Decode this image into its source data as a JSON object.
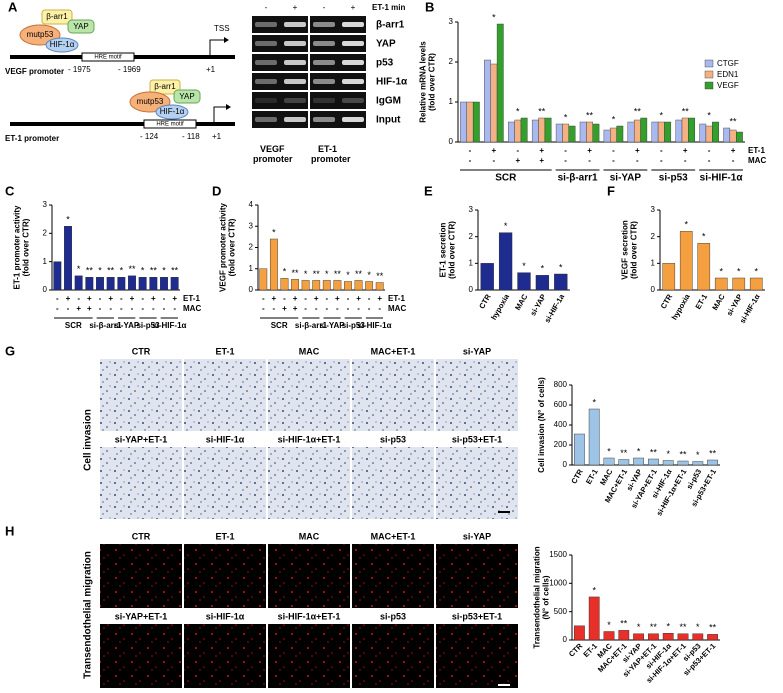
{
  "panel_labels": [
    "A",
    "B",
    "C",
    "D",
    "E",
    "F",
    "G",
    "H"
  ],
  "diagram": {
    "vegf": {
      "proteins": [
        "β-arr1",
        "YAP",
        "mutp53",
        "HIF-1α"
      ],
      "motif": "HRE motif",
      "promoter": "VEGF promoter",
      "positions": [
        "- 1975",
        "- 1969"
      ],
      "tss": "TSS",
      "start": "+1"
    },
    "et1": {
      "proteins": [
        "β-arr1",
        "YAP",
        "mutp53",
        "HIF-1α"
      ],
      "motif": "HRE motif",
      "promoter": "ET-1 promoter",
      "positions": [
        "- 124",
        "- 118"
      ],
      "start": "+1"
    }
  },
  "blot": {
    "columns": [
      "-",
      "+",
      "-",
      "+"
    ],
    "treatment": "ET-1 min",
    "rows": [
      "β-arr1",
      "YAP",
      "p53",
      "HIF-1α",
      "IgGM",
      "Input"
    ],
    "promoters": [
      [
        "VEGF",
        "promoter"
      ],
      [
        "ET-1",
        "promoter"
      ]
    ]
  },
  "chart_data": [
    {
      "type": "bar",
      "y_label": [
        "Relative mRNA levels",
        "(fold over CTR)"
      ],
      "ylim": [
        0,
        3
      ],
      "yticks": [
        0,
        1,
        2,
        3
      ],
      "categories": [
        "SCR",
        "SCR",
        "SCR",
        "SCR",
        "si-β-arr1",
        "si-β-arr1",
        "si-YAP",
        "si-YAP",
        "si-p53",
        "si-p53",
        "si-HIF-1α",
        "si-HIF-1α"
      ],
      "x_rows": [
        {
          "name": "ET-1",
          "signs": [
            "-",
            "+",
            "-",
            "+",
            "-",
            "+",
            "-",
            "+",
            "-",
            "+",
            "-",
            "+"
          ]
        },
        {
          "name": "MAC",
          "signs": [
            "-",
            "-",
            "+",
            "+",
            "-",
            "-",
            "-",
            "-",
            "-",
            "-",
            "-",
            "-"
          ]
        }
      ],
      "series": [
        {
          "name": "CTGF",
          "color": "#a9b8ee",
          "values": [
            1,
            2.05,
            0.5,
            0.55,
            0.45,
            0.5,
            0.3,
            0.5,
            0.5,
            0.55,
            0.45,
            0.35
          ]
        },
        {
          "name": "EDN1",
          "color": "#f4b183",
          "values": [
            1,
            1.95,
            0.55,
            0.6,
            0.45,
            0.5,
            0.35,
            0.55,
            0.5,
            0.6,
            0.4,
            0.3
          ]
        },
        {
          "name": "VEGF",
          "color": "#33a02c",
          "values": [
            1,
            2.95,
            0.6,
            0.6,
            0.4,
            0.45,
            0.4,
            0.6,
            0.5,
            0.6,
            0.5,
            0.25
          ]
        }
      ],
      "significance": [
        null,
        "*",
        "*",
        "**",
        "*",
        "**",
        "*",
        "**",
        "*",
        "**",
        "*",
        "**"
      ]
    },
    {
      "type": "bar",
      "y_label": [
        "ET-1 promoter activity",
        "(fold over CTR)"
      ],
      "ylim": [
        0,
        3
      ],
      "yticks": [
        0,
        1,
        2,
        3
      ],
      "color": "#1f2c8f",
      "categories": [
        "SCR",
        "SCR",
        "SCR",
        "SCR",
        "si-β-arr1",
        "si-β-arr1",
        "si-YAP",
        "si-YAP",
        "si-p53",
        "si-p53",
        "si-HIF-1α",
        "si-HIF-1α"
      ],
      "x_rows": [
        {
          "name": "ET-1",
          "signs": [
            "-",
            "+",
            "-",
            "+",
            "-",
            "+",
            "-",
            "+",
            "-",
            "+",
            "-",
            "+"
          ]
        },
        {
          "name": "MAC",
          "signs": [
            "-",
            "-",
            "+",
            "+",
            "-",
            "-",
            "-",
            "-",
            "-",
            "-",
            "-",
            "-"
          ]
        }
      ],
      "values": [
        1,
        2.25,
        0.5,
        0.45,
        0.45,
        0.45,
        0.45,
        0.5,
        0.45,
        0.45,
        0.45,
        0.45
      ],
      "significance": [
        null,
        "*",
        "*",
        "**",
        "*",
        "**",
        "*",
        "**",
        "*",
        "**",
        "*",
        "**"
      ]
    },
    {
      "type": "bar",
      "y_label": [
        "VEGF promoter activity",
        "(fold over CTR)"
      ],
      "ylim": [
        0,
        4
      ],
      "yticks": [
        0,
        1,
        2,
        3,
        4
      ],
      "color": "#f5a040",
      "categories": [
        "SCR",
        "SCR",
        "SCR",
        "SCR",
        "si-β-arr1",
        "si-β-arr1",
        "si-YAP",
        "si-YAP",
        "si-p53",
        "si-p53",
        "si-HIF-1α",
        "si-HIF-1α"
      ],
      "x_rows": [
        {
          "name": "ET-1",
          "signs": [
            "-",
            "+",
            "-",
            "+",
            "-",
            "+",
            "-",
            "+",
            "-",
            "+",
            "-",
            "+"
          ]
        },
        {
          "name": "MAC",
          "signs": [
            "-",
            "-",
            "+",
            "+",
            "-",
            "-",
            "-",
            "-",
            "-",
            "-",
            "-",
            "-"
          ]
        }
      ],
      "values": [
        1,
        2.4,
        0.55,
        0.5,
        0.45,
        0.45,
        0.45,
        0.45,
        0.4,
        0.45,
        0.4,
        0.35
      ],
      "significance": [
        null,
        "*",
        "*",
        "**",
        "*",
        "**",
        "*",
        "**",
        "*",
        "**",
        "*",
        "**"
      ]
    },
    {
      "type": "bar",
      "y_label": [
        "ET-1 secretion",
        "(fold over CTR)"
      ],
      "ylim": [
        0,
        3
      ],
      "yticks": [
        0,
        1,
        2,
        3
      ],
      "color": "#1f2c8f",
      "categories": [
        "CTR",
        "hypoxia",
        "MAC",
        "si-YAP",
        "si-HIF-1a"
      ],
      "values": [
        1,
        2.15,
        0.65,
        0.55,
        0.6
      ],
      "significance": [
        null,
        "*",
        "*",
        "*",
        "*"
      ]
    },
    {
      "type": "bar",
      "y_label": [
        "VEGF secretion",
        "(fold over CTR)"
      ],
      "ylim": [
        0,
        3
      ],
      "yticks": [
        0,
        1,
        2,
        3
      ],
      "color": "#f5a040",
      "categories": [
        "CTR",
        "hypoxia",
        "ET-1",
        "MAC",
        "si-YAP",
        "si-HIF-1α"
      ],
      "values": [
        1,
        2.2,
        1.75,
        0.45,
        0.45,
        0.45
      ],
      "significance": [
        null,
        "*",
        "*",
        "*",
        "*",
        "*"
      ]
    },
    {
      "type": "bar",
      "y_label": [
        "Cell invasion (N° of cells)"
      ],
      "ylim": [
        0,
        800
      ],
      "yticks": [
        0,
        200,
        400,
        600,
        800
      ],
      "color": "#9dc3e6",
      "categories": [
        "CTR",
        "ET-1",
        "MAC",
        "MAC+ET-1",
        "si-YAP",
        "si-YAP+ET-1",
        "si-HIF-1α",
        "si-HIF-1α+ET-1",
        "si-p53",
        "si-p53+ET-1"
      ],
      "values": [
        310,
        560,
        70,
        55,
        70,
        60,
        45,
        40,
        35,
        50
      ],
      "significance": [
        null,
        "*",
        "*",
        "**",
        "*",
        "**",
        "*",
        "**",
        "*",
        "**"
      ]
    },
    {
      "type": "bar",
      "y_label": [
        "Transendothelial migration",
        "(N° of cells)"
      ],
      "ylim": [
        0,
        1500
      ],
      "yticks": [
        0,
        500,
        1000,
        1500
      ],
      "color": "#e8302a",
      "categories": [
        "CTR",
        "ET-1",
        "MAC",
        "MAC+ET-1",
        "si-YAP",
        "si-YAP+ET-1",
        "si-HIF-1α",
        "si-HIF-1α+ET-1",
        "si-p53",
        "si-p53+ET-1"
      ],
      "values": [
        250,
        760,
        150,
        170,
        110,
        110,
        120,
        110,
        110,
        100
      ],
      "significance": [
        null,
        "*",
        "*",
        "**",
        "*",
        "**",
        "*",
        "**",
        "*",
        "**"
      ]
    }
  ],
  "invasion": {
    "side_label": "Cell invasion",
    "conditions": [
      "CTR",
      "ET-1",
      "MAC",
      "MAC+ET-1",
      "si-YAP",
      "si-YAP+ET-1",
      "si-HIF-1α",
      "si-HIF-1α+ET-1",
      "si-p53",
      "si-p53+ET-1"
    ]
  },
  "migration": {
    "side_label": "Transendothelial migration",
    "conditions": [
      "CTR",
      "ET-1",
      "MAC",
      "MAC+ET-1",
      "si-YAP",
      "si-YAP+ET-1",
      "si-HIF-1α",
      "si-HIF-1α+ET-1",
      "si-p53",
      "si-p53+ET-1"
    ]
  }
}
